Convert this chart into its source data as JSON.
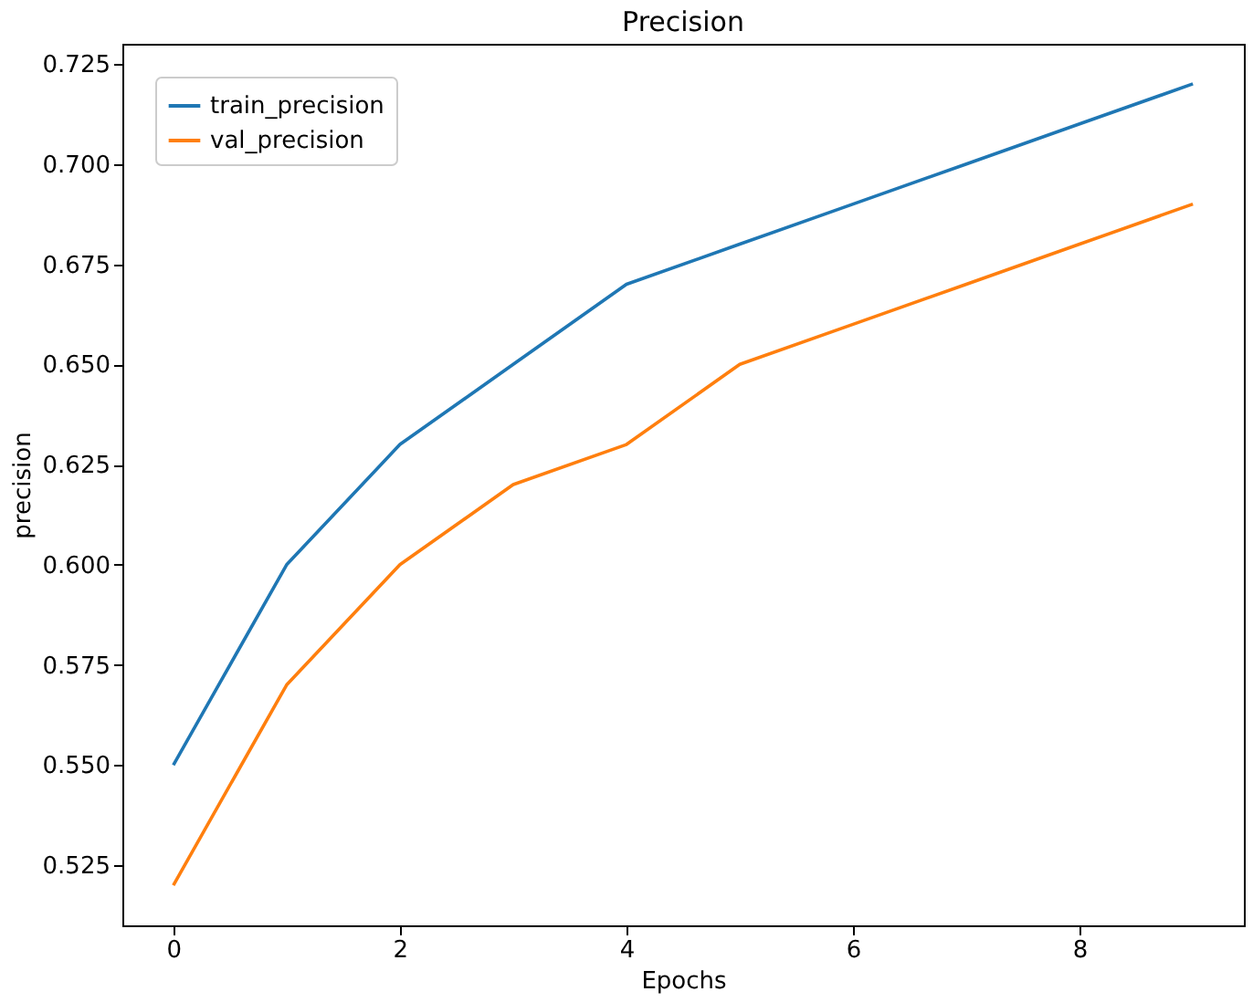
{
  "chart_data": {
    "type": "line",
    "title": "Precision",
    "xlabel": "Epochs",
    "ylabel": "precision",
    "x": [
      0,
      1,
      2,
      3,
      4,
      5,
      6,
      7,
      8,
      9
    ],
    "series": [
      {
        "name": "train_precision",
        "color": "#1f77b4",
        "values": [
          0.55,
          0.6,
          0.63,
          0.65,
          0.67,
          0.68,
          0.69,
          0.7,
          0.71,
          0.72
        ]
      },
      {
        "name": "val_precision",
        "color": "#ff7f0e",
        "values": [
          0.52,
          0.57,
          0.6,
          0.62,
          0.63,
          0.65,
          0.66,
          0.67,
          0.68,
          0.69
        ]
      }
    ],
    "xlim": [
      -0.45,
      9.45
    ],
    "xticks": [
      0,
      2,
      4,
      6,
      8
    ],
    "ylim": [
      0.51,
      0.73
    ],
    "yticks": [
      {
        "value": 0.525,
        "label": "0.525"
      },
      {
        "value": 0.55,
        "label": "0.550"
      },
      {
        "value": 0.575,
        "label": "0.575"
      },
      {
        "value": 0.6,
        "label": "0.600"
      },
      {
        "value": 0.625,
        "label": "0.625"
      },
      {
        "value": 0.65,
        "label": "0.650"
      },
      {
        "value": 0.675,
        "label": "0.675"
      },
      {
        "value": 0.7,
        "label": "0.700"
      },
      {
        "value": 0.725,
        "label": "0.725"
      }
    ],
    "grid": false,
    "legend": "top left",
    "marker": "none",
    "line_style": "solid"
  }
}
